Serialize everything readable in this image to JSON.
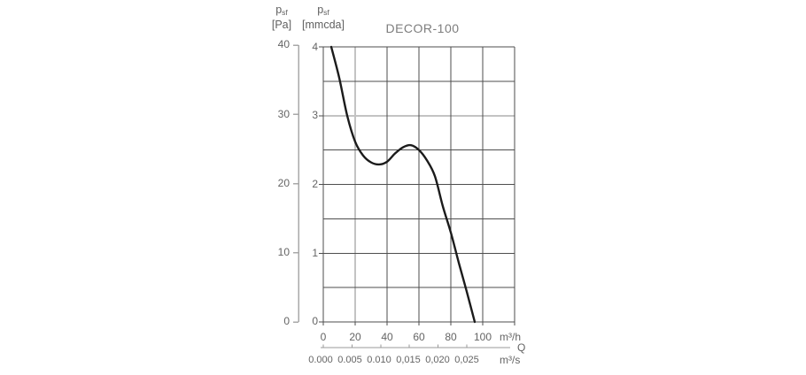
{
  "title": "DECOR-100",
  "axis_headers": {
    "pa": {
      "symbol": "p",
      "sub": "sf",
      "unit": "[Pa]"
    },
    "mmcda": {
      "symbol": "p",
      "sub": "sf",
      "unit": "[mmcda]"
    }
  },
  "axes": {
    "pa": {
      "ticks": [
        "40",
        "30",
        "20",
        "10",
        "0"
      ]
    },
    "mmcda": {
      "ticks": [
        "4",
        "3",
        "2",
        "1",
        "0"
      ]
    },
    "flow_h": {
      "ticks": [
        "0",
        "20",
        "40",
        "60",
        "80",
        "100"
      ],
      "unit": "m³/h",
      "quantity_symbol": "Q"
    },
    "flow_s": {
      "ticks": [
        "0.000",
        "0.005",
        "0.010",
        "0,015",
        "0,020",
        "0,025"
      ],
      "unit": "m³/s"
    }
  },
  "colors": {
    "curve": "#1b1b1b",
    "grid_dark": "#4e4e4e",
    "grid_light": "#c3c3c3",
    "axis_gray": "#a8a8a8",
    "scale_line": "#9a9a9a",
    "text": "#646464"
  },
  "chart_data": {
    "type": "line",
    "title": "DECOR-100",
    "xlabel": "Q",
    "x_unit_primary": "m³/h",
    "x_unit_secondary": "m³/s",
    "ylabel_primary": "p_sf [Pa]",
    "ylabel_secondary": "p_sf [mmcda]",
    "x_range_m3h": [
      0,
      120
    ],
    "x_labeled_max_m3h": 100,
    "y_range_mmcda": [
      0,
      4
    ],
    "y_range_pa": [
      0,
      40
    ],
    "x_gridline_step_m3h": 20,
    "y_gridline_step_mmcda": 0.5,
    "highlight_gridlines": {
      "x_m3h": [
        20
      ],
      "y_mmcda": [
        3
      ]
    },
    "y_tick_values_mmcda": [
      0,
      1,
      2,
      3,
      4
    ],
    "pa_tick_values": [
      0,
      10,
      20,
      30,
      40
    ],
    "secondary_x_ticks_m3s": [
      0.0,
      0.005,
      0.01,
      0.015,
      0.02,
      0.025
    ],
    "grid": true,
    "legend": "none",
    "series": [
      {
        "name": "DECOR-100 fan curve",
        "x_m3h": [
          5,
          10,
          15,
          20,
          25,
          30,
          35,
          40,
          45,
          50,
          55,
          60,
          65,
          70,
          75,
          80,
          85,
          90,
          95
        ],
        "y_mmcda": [
          4.0,
          3.55,
          3.0,
          2.62,
          2.42,
          2.32,
          2.29,
          2.33,
          2.45,
          2.54,
          2.57,
          2.5,
          2.35,
          2.12,
          1.68,
          1.3,
          0.86,
          0.44,
          0.0
        ]
      }
    ]
  }
}
